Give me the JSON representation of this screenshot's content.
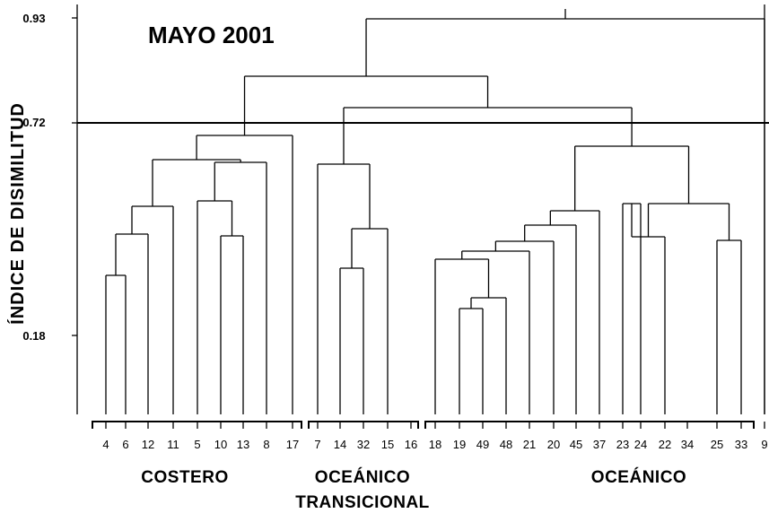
{
  "title": "MAYO  2001",
  "y_axis": {
    "label": "ÍNDICE   DE   DISIMILITUD",
    "ticks": [
      "0.93",
      "0.72",
      "0.18"
    ]
  },
  "leaves": [
    "4",
    "6",
    "12",
    "11",
    "5",
    "10",
    "13",
    "8",
    "17",
    "7",
    "14",
    "32",
    "15",
    "16",
    "18",
    "19",
    "49",
    "48",
    "21",
    "20",
    "45",
    "37",
    "23",
    "24",
    "22",
    "34",
    "25",
    "33",
    "9"
  ],
  "groups": [
    {
      "label": "COSTERO"
    },
    {
      "label": "OCEÁNICO",
      "label2": "TRANSICIONAL"
    },
    {
      "label": "OCEÁNICO"
    }
  ],
  "cut_level": "0.72"
}
